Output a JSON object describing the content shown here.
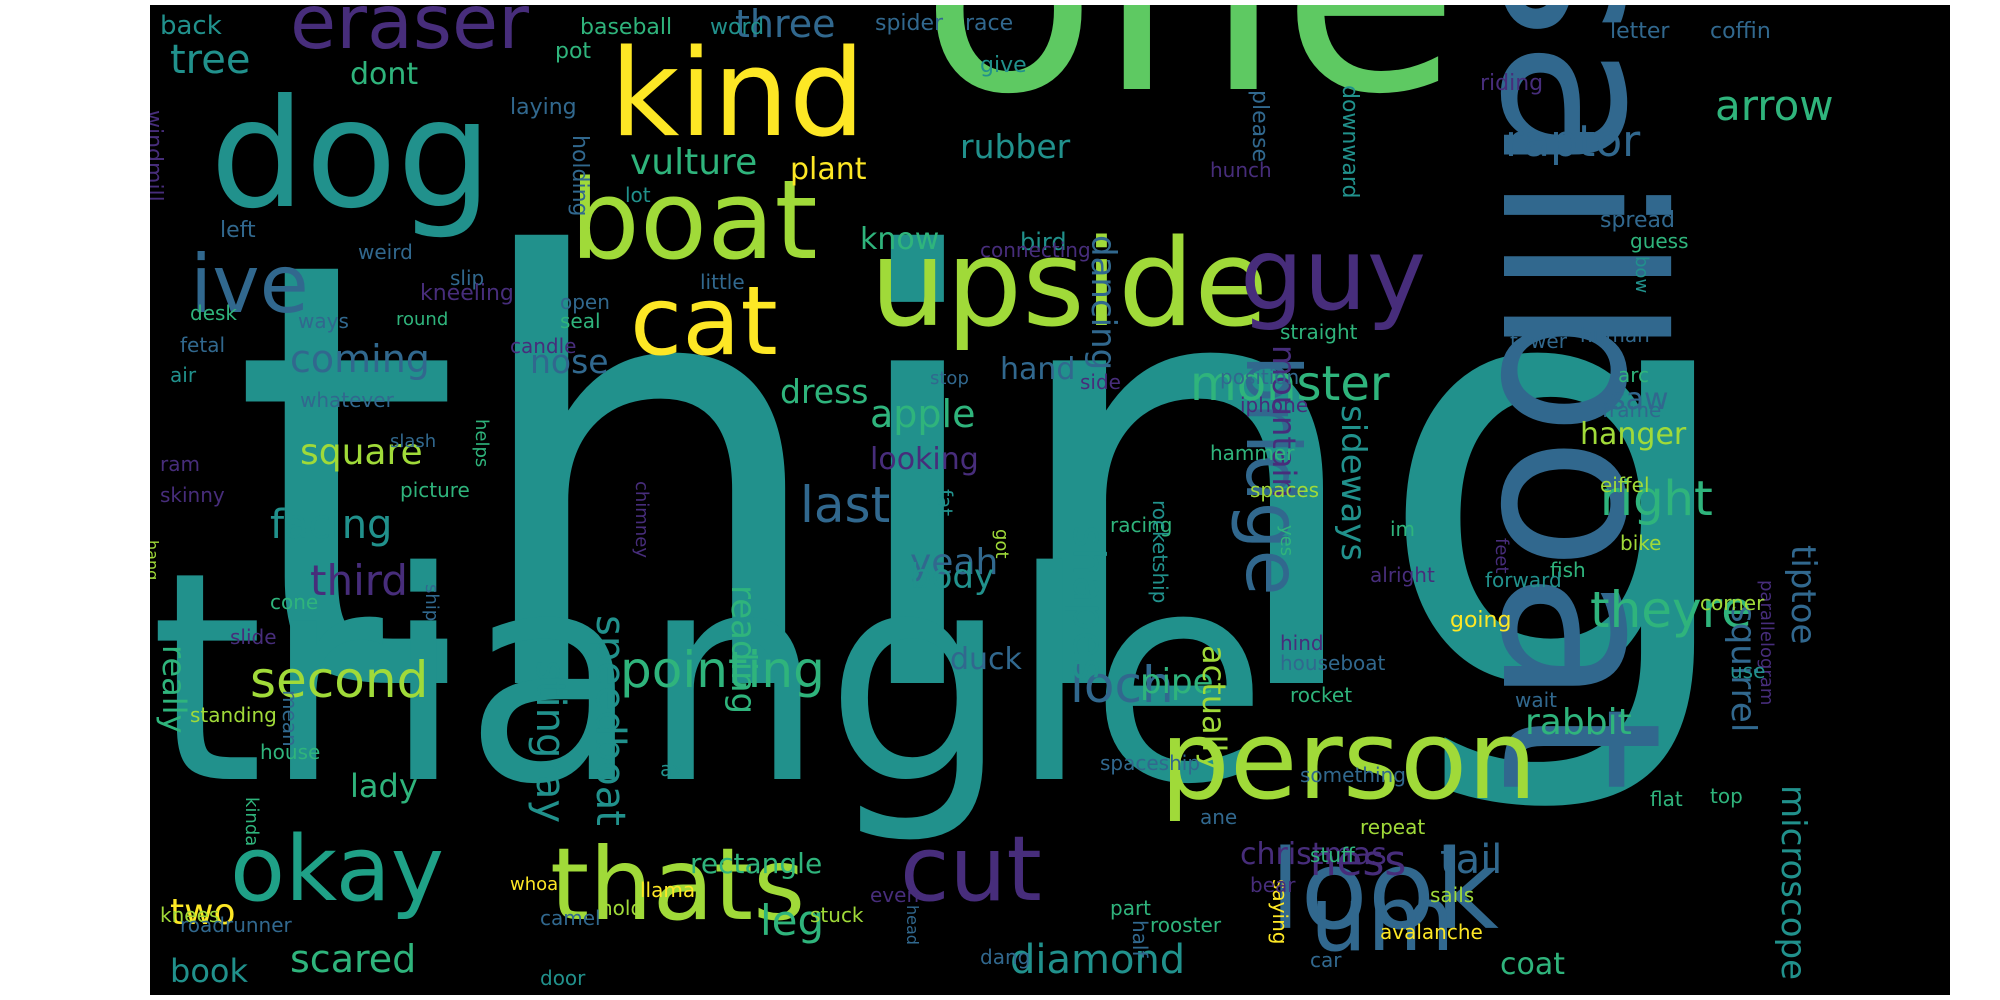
{
  "cloud": {
    "background": "#000000",
    "palette": {
      "yellow": "#fde725",
      "lime": "#a0da39",
      "green": "#5ec962",
      "jade": "#2fb47c",
      "teal": "#21918c",
      "cyan": "#1fa187",
      "blue": "#3b528b",
      "slate": "#31688e",
      "indigo": "#472d7b",
      "purple": "#440154"
    },
    "words": [
      {
        "text": "thing",
        "color": "teal"
      },
      {
        "text": "one",
        "color": "green"
      },
      {
        "text": "triangle",
        "color": "teal"
      },
      {
        "text": "sailboat",
        "color": "slate"
      },
      {
        "text": "dog",
        "color": "teal"
      },
      {
        "text": "kind",
        "color": "yellow"
      },
      {
        "text": "upside",
        "color": "lime"
      },
      {
        "text": "boat",
        "color": "lime"
      },
      {
        "text": "cat",
        "color": "yellow"
      },
      {
        "text": "guy",
        "color": "indigo"
      },
      {
        "text": "person",
        "color": "lime"
      },
      {
        "text": "look",
        "color": "slate"
      },
      {
        "text": "thats",
        "color": "lime"
      },
      {
        "text": "okay",
        "color": "cyan"
      },
      {
        "text": "cut",
        "color": "indigo"
      },
      {
        "text": "um",
        "color": "slate"
      },
      {
        "text": "ive",
        "color": "slate"
      },
      {
        "text": "bridge",
        "color": "slate"
      },
      {
        "text": "eraser",
        "color": "indigo"
      },
      {
        "text": "monster",
        "color": "jade"
      },
      {
        "text": "pointing",
        "color": "jade"
      },
      {
        "text": "loch",
        "color": "slate"
      },
      {
        "text": "second",
        "color": "lime"
      },
      {
        "text": "theyre",
        "color": "jade"
      },
      {
        "text": "last",
        "color": "slate"
      },
      {
        "text": "right",
        "color": "jade"
      },
      {
        "text": "raptor",
        "color": "slate"
      },
      {
        "text": "arrow",
        "color": "jade"
      },
      {
        "text": "tree",
        "color": "teal"
      },
      {
        "text": "three",
        "color": "slate"
      },
      {
        "text": "ness",
        "color": "indigo"
      },
      {
        "text": "tail",
        "color": "slate"
      },
      {
        "text": "leg",
        "color": "jade"
      },
      {
        "text": "diamond",
        "color": "teal"
      },
      {
        "text": "vulture",
        "color": "jade"
      },
      {
        "text": "scared",
        "color": "jade"
      },
      {
        "text": "two",
        "color": "yellow"
      },
      {
        "text": "book",
        "color": "teal"
      },
      {
        "text": "lady",
        "color": "jade"
      },
      {
        "text": "square",
        "color": "lime"
      },
      {
        "text": "facing",
        "color": "teal"
      },
      {
        "text": "third",
        "color": "indigo"
      },
      {
        "text": "coming",
        "color": "slate"
      },
      {
        "text": "apple",
        "color": "jade"
      },
      {
        "text": "dress",
        "color": "jade"
      },
      {
        "text": "nose",
        "color": "slate"
      },
      {
        "text": "yeah",
        "color": "slate"
      },
      {
        "text": "body",
        "color": "teal"
      },
      {
        "text": "rabbit",
        "color": "jade"
      },
      {
        "text": "pipe",
        "color": "jade"
      },
      {
        "text": "shapes",
        "color": "teal"
      },
      {
        "text": "stingray",
        "color": "teal"
      },
      {
        "text": "speedboat",
        "color": "teal"
      },
      {
        "text": "reading",
        "color": "jade"
      },
      {
        "text": "microscope",
        "color": "teal"
      },
      {
        "text": "squirrel",
        "color": "slate"
      },
      {
        "text": "tiptoe",
        "color": "slate"
      },
      {
        "text": "sideways",
        "color": "teal"
      },
      {
        "text": "mountain",
        "color": "indigo"
      },
      {
        "text": "dancing",
        "color": "slate"
      },
      {
        "text": "actually",
        "color": "lime"
      },
      {
        "text": "really",
        "color": "jade"
      },
      {
        "text": "looking",
        "color": "indigo"
      },
      {
        "text": "know",
        "color": "jade"
      },
      {
        "text": "plant",
        "color": "yellow"
      },
      {
        "text": "rubber",
        "color": "teal"
      },
      {
        "text": "dont",
        "color": "jade"
      },
      {
        "text": "hand",
        "color": "slate"
      },
      {
        "text": "bird",
        "color": "teal"
      },
      {
        "text": "duck",
        "color": "slate"
      },
      {
        "text": "saw",
        "color": "slate"
      },
      {
        "text": "hanger",
        "color": "lime"
      },
      {
        "text": "coat",
        "color": "jade"
      },
      {
        "text": "rectangle",
        "color": "jade"
      },
      {
        "text": "christmas",
        "color": "indigo"
      },
      {
        "text": "back",
        "color": "teal"
      },
      {
        "text": "baseball",
        "color": "jade"
      },
      {
        "text": "word",
        "color": "teal"
      },
      {
        "text": "spider",
        "color": "slate"
      },
      {
        "text": "race",
        "color": "slate"
      },
      {
        "text": "letter",
        "color": "slate"
      },
      {
        "text": "coffin",
        "color": "slate"
      },
      {
        "text": "pot",
        "color": "jade"
      },
      {
        "text": "give",
        "color": "teal"
      },
      {
        "text": "please",
        "color": "slate"
      },
      {
        "text": "riding",
        "color": "indigo"
      },
      {
        "text": "laying",
        "color": "slate"
      },
      {
        "text": "holding",
        "color": "slate"
      },
      {
        "text": "downward",
        "color": "teal"
      },
      {
        "text": "windmill",
        "color": "indigo"
      },
      {
        "text": "lot",
        "color": "teal"
      },
      {
        "text": "hunch",
        "color": "indigo"
      },
      {
        "text": "left",
        "color": "slate"
      },
      {
        "text": "connecting",
        "color": "indigo"
      },
      {
        "text": "spread",
        "color": "slate"
      },
      {
        "text": "guess",
        "color": "jade"
      },
      {
        "text": "weird",
        "color": "slate"
      },
      {
        "text": "slip",
        "color": "slate"
      },
      {
        "text": "open",
        "color": "slate"
      },
      {
        "text": "little",
        "color": "slate"
      },
      {
        "text": "bow",
        "color": "teal"
      },
      {
        "text": "kneeling",
        "color": "indigo"
      },
      {
        "text": "seal",
        "color": "jade"
      },
      {
        "text": "desk",
        "color": "jade"
      },
      {
        "text": "ways",
        "color": "slate"
      },
      {
        "text": "round",
        "color": "jade"
      },
      {
        "text": "candle",
        "color": "indigo"
      },
      {
        "text": "straight",
        "color": "jade"
      },
      {
        "text": "fetal",
        "color": "slate"
      },
      {
        "text": "tower",
        "color": "slate"
      },
      {
        "text": "human",
        "color": "slate"
      },
      {
        "text": "air",
        "color": "teal"
      },
      {
        "text": "arc",
        "color": "jade"
      },
      {
        "text": "stop",
        "color": "slate"
      },
      {
        "text": "side",
        "color": "indigo"
      },
      {
        "text": "position",
        "color": "slate"
      },
      {
        "text": "whatever",
        "color": "slate"
      },
      {
        "text": "iphone",
        "color": "indigo"
      },
      {
        "text": "frame",
        "color": "slate"
      },
      {
        "text": "slash",
        "color": "slate"
      },
      {
        "text": "hammer",
        "color": "jade"
      },
      {
        "text": "ram",
        "color": "indigo"
      },
      {
        "text": "helps",
        "color": "jade"
      },
      {
        "text": "skinny",
        "color": "indigo"
      },
      {
        "text": "spaces",
        "color": "lime"
      },
      {
        "text": "picture",
        "color": "jade"
      },
      {
        "text": "fat",
        "color": "teal"
      },
      {
        "text": "racing",
        "color": "jade"
      },
      {
        "text": "im",
        "color": "jade"
      },
      {
        "text": "yes",
        "color": "jade"
      },
      {
        "text": "got",
        "color": "lime"
      },
      {
        "text": "rocketship",
        "color": "teal"
      },
      {
        "text": "chimney",
        "color": "indigo"
      },
      {
        "text": "fish",
        "color": "jade"
      },
      {
        "text": "forward",
        "color": "teal"
      },
      {
        "text": "parallelogram",
        "color": "indigo"
      },
      {
        "text": "ship",
        "color": "slate"
      },
      {
        "text": "eiffel",
        "color": "lime"
      },
      {
        "text": "bike",
        "color": "lime"
      },
      {
        "text": "feet",
        "color": "indigo"
      },
      {
        "text": "alright",
        "color": "indigo"
      },
      {
        "text": "hang",
        "color": "lime"
      },
      {
        "text": "cone",
        "color": "jade"
      },
      {
        "text": "going",
        "color": "yellow"
      },
      {
        "text": "hind",
        "color": "indigo"
      },
      {
        "text": "corner",
        "color": "lime"
      },
      {
        "text": "slide",
        "color": "indigo"
      },
      {
        "text": "houseboat",
        "color": "slate"
      },
      {
        "text": "use",
        "color": "teal"
      },
      {
        "text": "rocket",
        "color": "jade"
      },
      {
        "text": "wait",
        "color": "slate"
      },
      {
        "text": "mean",
        "color": "slate"
      },
      {
        "text": "standing",
        "color": "lime"
      },
      {
        "text": "house",
        "color": "jade"
      },
      {
        "text": "spaceship",
        "color": "slate"
      },
      {
        "text": "something",
        "color": "slate"
      },
      {
        "text": "ax",
        "color": "teal"
      },
      {
        "text": "kinda",
        "color": "jade"
      },
      {
        "text": "ane",
        "color": "slate"
      },
      {
        "text": "repeat",
        "color": "lime"
      },
      {
        "text": "flat",
        "color": "jade"
      },
      {
        "text": "top",
        "color": "jade"
      },
      {
        "text": "stuff",
        "color": "jade"
      },
      {
        "text": "saying",
        "color": "yellow"
      },
      {
        "text": "bear",
        "color": "indigo"
      },
      {
        "text": "even",
        "color": "indigo"
      },
      {
        "text": "stuck",
        "color": "lime"
      },
      {
        "text": "sails",
        "color": "lime"
      },
      {
        "text": "rooster",
        "color": "jade"
      },
      {
        "text": "head",
        "color": "slate"
      },
      {
        "text": "whoa",
        "color": "yellow"
      },
      {
        "text": "hold",
        "color": "lime"
      },
      {
        "text": "llama",
        "color": "yellow"
      },
      {
        "text": "knees",
        "color": "lime"
      },
      {
        "text": "camel",
        "color": "slate"
      },
      {
        "text": "part",
        "color": "jade"
      },
      {
        "text": "car",
        "color": "slate"
      },
      {
        "text": "roadrunner",
        "color": "slate"
      },
      {
        "text": "half",
        "color": "slate"
      },
      {
        "text": "avalanche",
        "color": "yellow"
      },
      {
        "text": "dang",
        "color": "slate"
      },
      {
        "text": "door",
        "color": "teal"
      }
    ]
  }
}
